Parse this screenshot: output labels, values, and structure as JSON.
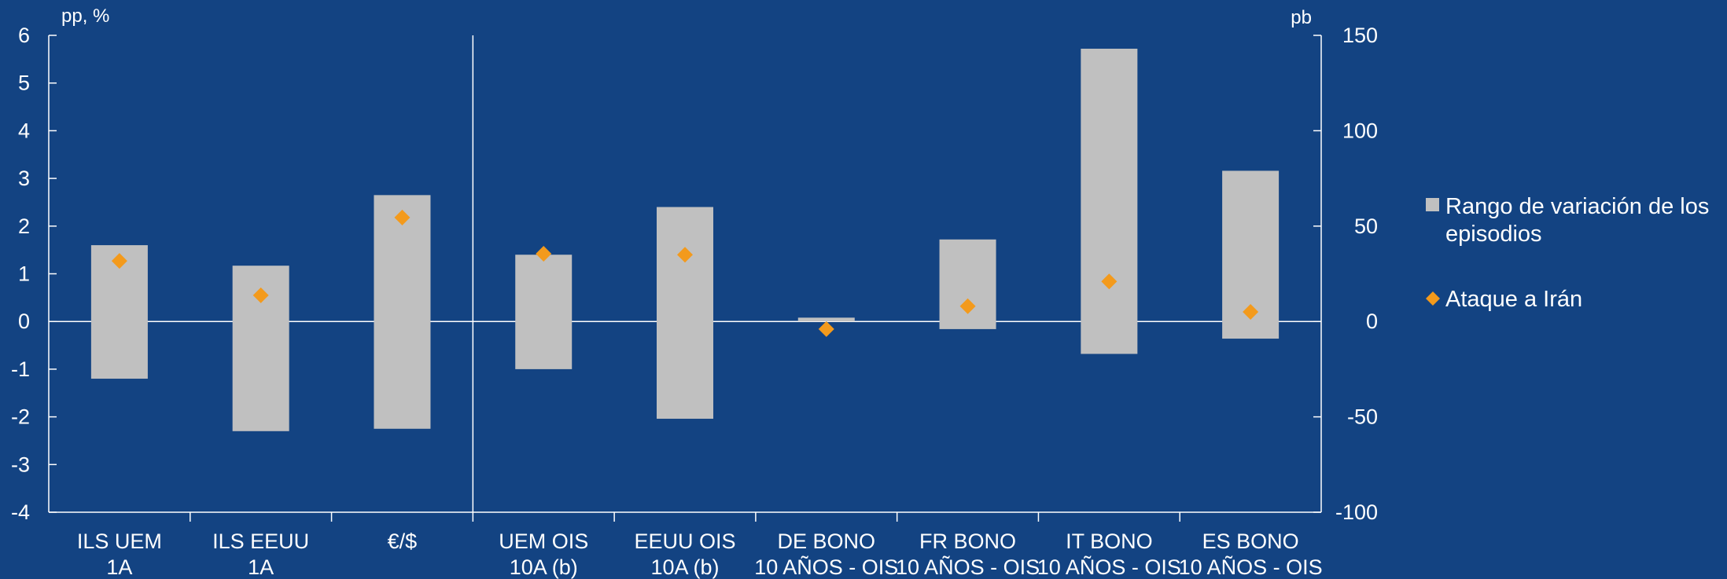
{
  "chart_data": {
    "type": "bar",
    "title": "",
    "left_axis": {
      "unit": "pp, %",
      "ylim": [
        -4,
        6
      ],
      "ticks": [
        -4,
        -3,
        -2,
        -1,
        0,
        1,
        2,
        3,
        4,
        5,
        6
      ]
    },
    "right_axis": {
      "unit": "pb",
      "ylim": [
        -100,
        150
      ],
      "ticks": [
        -100,
        -50,
        0,
        50,
        100,
        150
      ]
    },
    "categories": [
      {
        "lines": [
          "ILS UEM",
          "1A"
        ],
        "axis": "left"
      },
      {
        "lines": [
          "ILS EEUU",
          "1A"
        ],
        "axis": "left"
      },
      {
        "lines": [
          "€/$"
        ],
        "axis": "left"
      },
      {
        "lines": [
          "UEM OIS",
          "10A (b)"
        ],
        "axis": "right"
      },
      {
        "lines": [
          "EEUU OIS",
          "10A (b)"
        ],
        "axis": "right"
      },
      {
        "lines": [
          "DE BONO",
          "10 AÑOS - OIS"
        ],
        "axis": "right"
      },
      {
        "lines": [
          "FR BONO",
          "10 AÑOS - OIS"
        ],
        "axis": "right"
      },
      {
        "lines": [
          "IT BONO",
          "10 AÑOS - OIS"
        ],
        "axis": "right"
      },
      {
        "lines": [
          "ES BONO",
          "10 AÑOS - OIS"
        ],
        "axis": "right"
      }
    ],
    "series": [
      {
        "name": "Rango de variación de los episodios",
        "kind": "range-bar",
        "color": "#c0c0c0",
        "low": [
          -1.2,
          -2.3,
          -2.25,
          -25,
          -51,
          0,
          -4,
          -17,
          -9
        ],
        "high": [
          1.6,
          1.17,
          2.65,
          35,
          60,
          2,
          43,
          143,
          79
        ]
      },
      {
        "name": "Ataque a Irán",
        "kind": "marker-diamond",
        "color": "#f39a1c",
        "values": [
          1.27,
          0.55,
          2.18,
          35.5,
          35,
          -4,
          8,
          21,
          5
        ]
      }
    ],
    "legend": {
      "position": "right",
      "items": [
        {
          "lines": [
            "Rango de variación de los",
            "episodios"
          ],
          "marker": "square",
          "color": "#c0c0c0"
        },
        {
          "lines": [
            "Ataque a Irán"
          ],
          "marker": "diamond",
          "color": "#f39a1c"
        }
      ]
    },
    "separator_after_category": 3,
    "grid": false
  }
}
